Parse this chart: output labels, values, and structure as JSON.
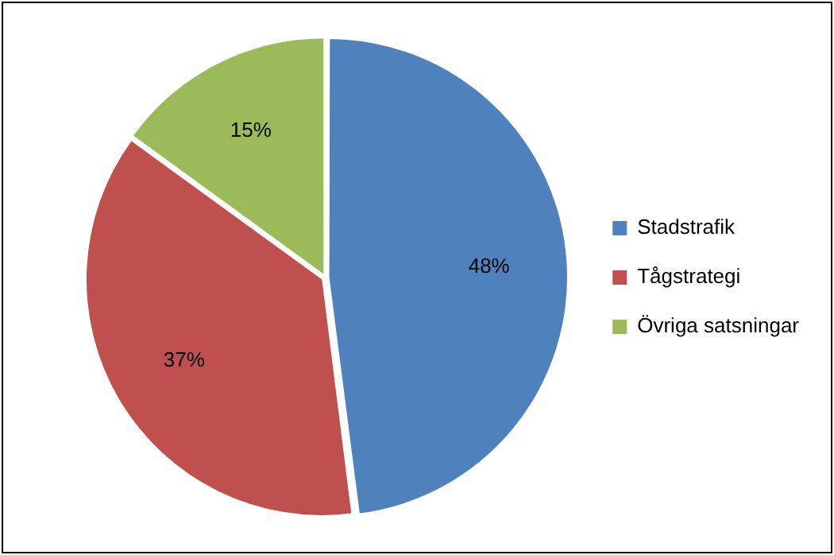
{
  "chart_data": {
    "type": "pie",
    "categories": [
      "Stadstrafik",
      "Tågstrategi",
      "Övriga satsningar"
    ],
    "values": [
      48,
      37,
      15
    ],
    "colors": [
      "#4f81bd",
      "#c0504d",
      "#9bbb59"
    ],
    "value_labels": [
      "48%",
      "37%",
      "15%"
    ],
    "legend": "right"
  }
}
